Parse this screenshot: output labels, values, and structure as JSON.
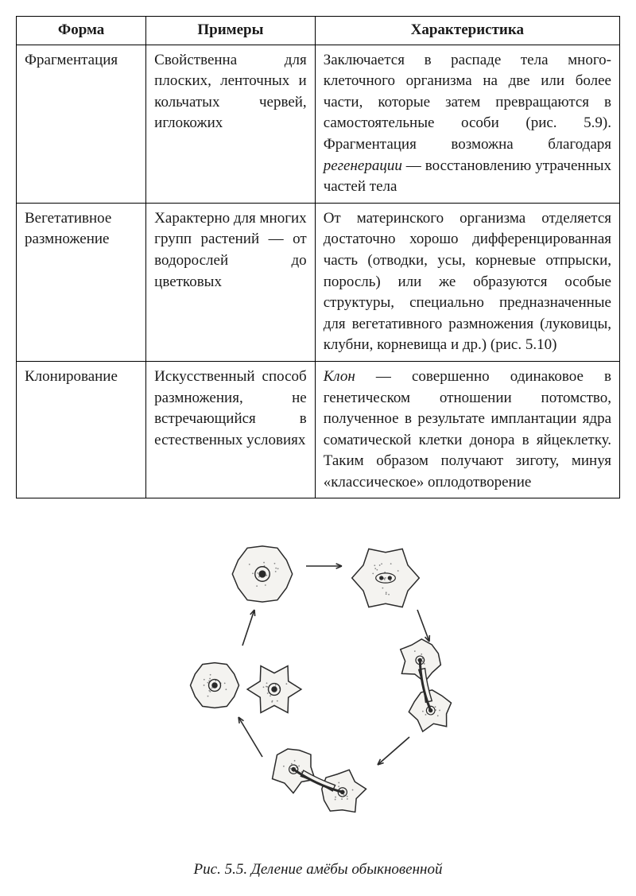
{
  "table": {
    "headers": [
      "Форма",
      "Примеры",
      "Характеристика"
    ],
    "rows": [
      {
        "form": "Фрагментация",
        "examples": "Свойственна для плоских, ленточных и кольчатых червей, иглокожих",
        "char_parts": [
          {
            "text": "Заключается в распаде тела много­клеточного организма на две или более части, которые затем превра­щаются в самостоятельные особи (рис. 5.9). Фрагментация возможна благодаря ",
            "italic": false
          },
          {
            "text": "регенерации",
            "italic": true
          },
          {
            "text": " — восстанов­лению утраченных частей тела",
            "italic": false
          }
        ]
      },
      {
        "form": "Вегетативное размножение",
        "examples": "Характерно для многих групп ра­стений — от водо­рослей до цветковых",
        "char_parts": [
          {
            "text": "От материнского организма от­деляется достаточно хорошо диф­ференцированная часть (отводки, усы, корневые отпрыски, поросль) или же образуются особые структу­ры, специально предназначенные для вегетативного размножения (лу­ковицы, клубни, корневища и др.) (рис. 5.10)",
            "italic": false
          }
        ]
      },
      {
        "form": "Клонирование",
        "examples": "Искусственный спо­соб размножения, не встречающийся в естественных усло­виях",
        "char_parts": [
          {
            "text": "Клон",
            "italic": true
          },
          {
            "text": " — совершенно одинаковое в генетическом отношении по­томство, полученное в результате имплантации ядра соматической клетки донора в яйцеклетку. Таким образом получают зиготу, минуя «классическое» оплодотворение",
            "italic": false
          }
        ]
      }
    ]
  },
  "figure": {
    "caption_prefix": "Рис. 5.5.",
    "caption_text": " Деление амёбы обыкновенной",
    "colors": {
      "stroke": "#2a2a2a",
      "fill": "#f4f3f0",
      "nucleus": "#2a2a2a",
      "dots": "#888888"
    }
  }
}
